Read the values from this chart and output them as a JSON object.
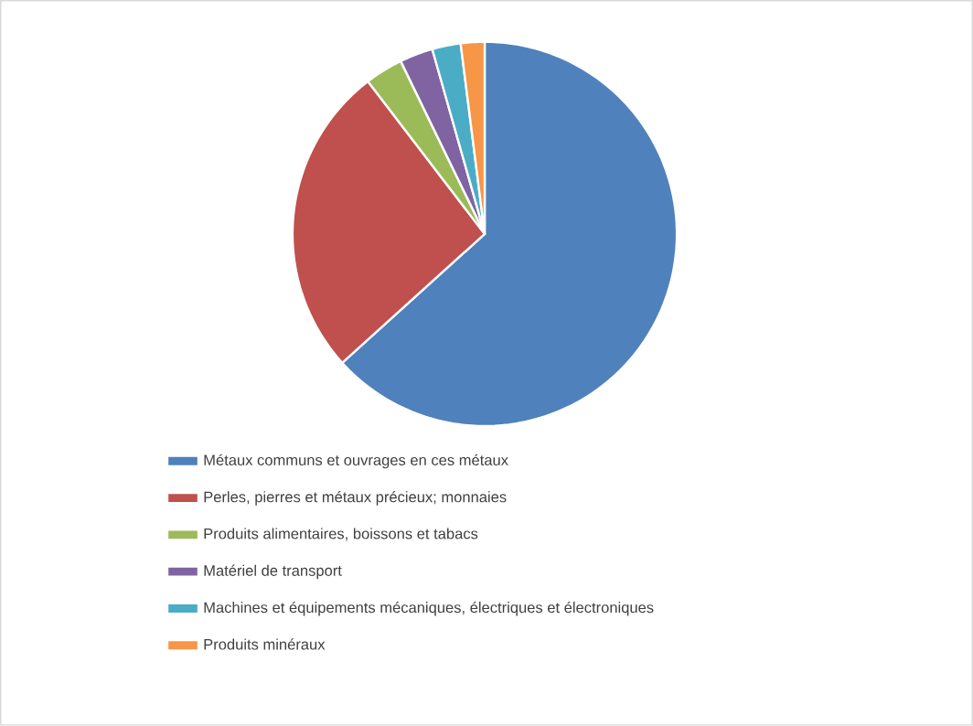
{
  "chart_data": {
    "type": "pie",
    "categories": [
      "Métaux communs et ouvrages en ces métaux",
      "Perles, pierres et métaux précieux; monnaies",
      "Produits alimentaires, boissons et tabacs",
      "Matériel de transport",
      "Machines et équipements mécaniques, électriques et électroniques",
      "Produits minéraux"
    ],
    "values": [
      63.3,
      26.3,
      3.2,
      2.8,
      2.4,
      2.0
    ],
    "colors": [
      "#4f81bd",
      "#c0504d",
      "#9bbb59",
      "#8064a2",
      "#4bacc6",
      "#f79646"
    ],
    "legend": "bottom"
  }
}
